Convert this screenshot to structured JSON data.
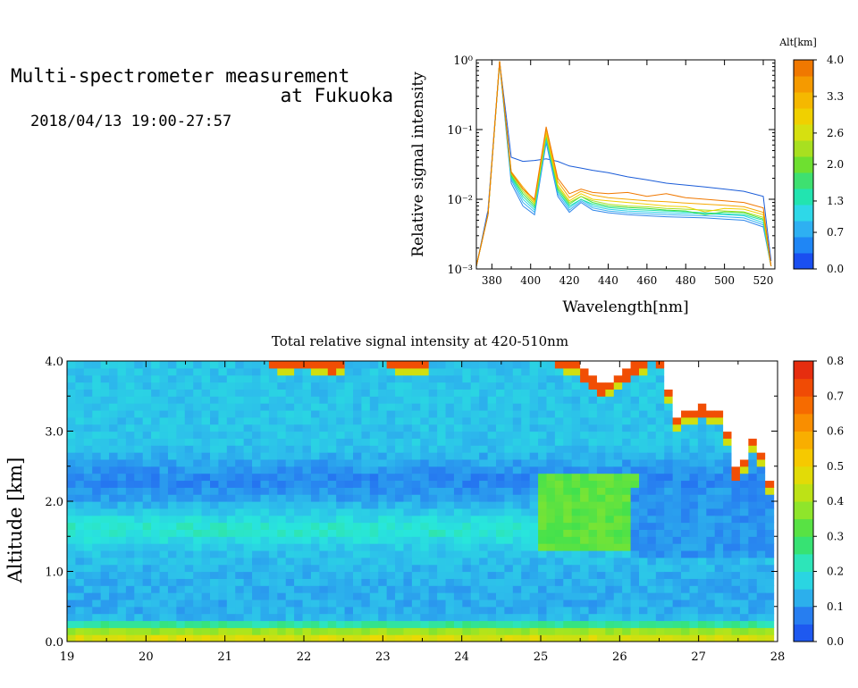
{
  "header": {
    "title_line1": "Multi-spectrometer measurement",
    "title_line2": "at Fukuoka",
    "date_range": "2018/04/13 19:00-27:57"
  },
  "chart_data": [
    {
      "type": "line",
      "xlabel": "Wavelength[nm]",
      "ylabel": "Relative signal intensity",
      "xlim": [
        372,
        526
      ],
      "ylim": [
        0.001,
        1
      ],
      "yscale": "log",
      "x_ticks": [
        "380",
        "400",
        "420",
        "440",
        "460",
        "480",
        "500",
        "520"
      ],
      "y_ticks": [
        "10⁻³",
        "10⁻²",
        "10⁻¹",
        "10⁰"
      ],
      "legend_title": "Alt[km]",
      "legend_ticks": [
        "0.0",
        "0.7",
        "1.3",
        "2.0",
        "2.6",
        "3.3",
        "4.0"
      ],
      "x": [
        372,
        378,
        384,
        390,
        396,
        402,
        408,
        414,
        420,
        426,
        432,
        440,
        450,
        460,
        470,
        480,
        490,
        500,
        510,
        520,
        524
      ],
      "series": [
        {
          "color": "#1a5cd8",
          "values": [
            0.0011,
            0.007,
            0.95,
            0.04,
            0.035,
            0.036,
            0.038,
            0.035,
            0.03,
            0.028,
            0.026,
            0.024,
            0.021,
            0.019,
            0.017,
            0.016,
            0.015,
            0.014,
            0.013,
            0.011,
            0.0013
          ]
        },
        {
          "color": "#2f86ea",
          "values": [
            0.0011,
            0.006,
            0.9,
            0.017,
            0.008,
            0.006,
            0.065,
            0.011,
            0.0065,
            0.009,
            0.007,
            0.0064,
            0.006,
            0.0058,
            0.0056,
            0.0055,
            0.0054,
            0.0052,
            0.005,
            0.004,
            0.0011
          ]
        },
        {
          "color": "#38b0f2",
          "values": [
            0.0011,
            0.006,
            0.92,
            0.019,
            0.009,
            0.0065,
            0.07,
            0.012,
            0.007,
            0.0095,
            0.0075,
            0.0068,
            0.0064,
            0.0062,
            0.006,
            0.0059,
            0.0058,
            0.0056,
            0.0054,
            0.0043,
            0.0011
          ]
        },
        {
          "color": "#2ed4e6",
          "values": [
            0.0011,
            0.006,
            0.93,
            0.02,
            0.01,
            0.007,
            0.075,
            0.013,
            0.0075,
            0.01,
            0.008,
            0.0072,
            0.0068,
            0.0066,
            0.0064,
            0.0063,
            0.0062,
            0.006,
            0.0058,
            0.0046,
            0.0011
          ]
        },
        {
          "color": "#22e0a8",
          "values": [
            0.0011,
            0.006,
            0.94,
            0.021,
            0.011,
            0.0075,
            0.078,
            0.013,
            0.008,
            0.01,
            0.0085,
            0.0076,
            0.0072,
            0.007,
            0.0068,
            0.0066,
            0.0064,
            0.0062,
            0.006,
            0.005,
            0.0011
          ]
        },
        {
          "color": "#40e040",
          "values": [
            0.0011,
            0.006,
            0.94,
            0.022,
            0.012,
            0.008,
            0.082,
            0.014,
            0.0085,
            0.011,
            0.009,
            0.008,
            0.0076,
            0.0074,
            0.007,
            0.0068,
            0.006,
            0.0066,
            0.0064,
            0.0052,
            0.0011
          ]
        },
        {
          "color": "#a8e020",
          "values": [
            0.0011,
            0.006,
            0.95,
            0.023,
            0.013,
            0.0085,
            0.085,
            0.015,
            0.009,
            0.011,
            0.0095,
            0.0085,
            0.008,
            0.0078,
            0.0074,
            0.0072,
            0.007,
            0.0068,
            0.0066,
            0.0055,
            0.0011
          ]
        },
        {
          "color": "#f0d000",
          "values": [
            0.0011,
            0.006,
            0.95,
            0.024,
            0.014,
            0.009,
            0.09,
            0.016,
            0.0095,
            0.012,
            0.01,
            0.0095,
            0.009,
            0.0085,
            0.008,
            0.0078,
            0.0066,
            0.0074,
            0.0072,
            0.006,
            0.0011
          ]
        },
        {
          "color": "#f5a800",
          "values": [
            0.0011,
            0.006,
            0.96,
            0.025,
            0.015,
            0.0095,
            0.1,
            0.018,
            0.0105,
            0.013,
            0.0115,
            0.0105,
            0.01,
            0.0095,
            0.0092,
            0.0088,
            0.0085,
            0.0082,
            0.0078,
            0.0065,
            0.0011
          ]
        },
        {
          "color": "#f07800",
          "values": [
            0.0011,
            0.006,
            0.96,
            0.024,
            0.014,
            0.01,
            0.11,
            0.02,
            0.012,
            0.014,
            0.0125,
            0.012,
            0.0125,
            0.011,
            0.012,
            0.0105,
            0.01,
            0.0095,
            0.009,
            0.0075,
            0.0011
          ]
        }
      ]
    },
    {
      "type": "heatmap",
      "title": "Total relative signal intensity at 420-510nm",
      "ylabel": "Altitude [km]",
      "xlim": [
        19,
        28
      ],
      "ylim": [
        0,
        4
      ],
      "x_ticks": [
        "19",
        "20",
        "21",
        "22",
        "23",
        "24",
        "25",
        "26",
        "27",
        "28"
      ],
      "y_ticks": [
        "0.0",
        "1.0",
        "2.0",
        "3.0",
        "4.0"
      ],
      "colorbar_range": [
        0,
        0.8
      ],
      "colorbar_ticks": [
        "0.0",
        "0.1",
        "0.2",
        "0.3",
        "0.4",
        "0.5",
        "0.6",
        "0.7",
        "0.8"
      ],
      "data_end_hour": 27.95,
      "altitude_profile_km": [
        0.0,
        0.2,
        0.3,
        0.5,
        1.0,
        1.3,
        1.6,
        2.0,
        2.3,
        2.8,
        3.3,
        4.0
      ],
      "altitude_profile_values": [
        0.5,
        0.35,
        0.14,
        0.12,
        0.13,
        0.15,
        0.22,
        0.12,
        0.08,
        0.15,
        0.15,
        0.15
      ],
      "high_signal_regions": [
        {
          "from_hour": 25.0,
          "to_hour": 26.2,
          "alt_from_km": 1.3,
          "alt_to_km": 2.4,
          "value": 0.33
        },
        {
          "from_hour": 26.1,
          "to_hour": 27.9,
          "alt_from_km": 1.2,
          "alt_to_km": 2.2,
          "value": 0.1
        }
      ],
      "upper_cloud_boundary": {
        "hours": [
          19.0,
          21.5,
          21.7,
          22.0,
          22.4,
          22.6,
          22.8,
          23.0,
          23.3,
          23.6,
          24.0,
          25.0,
          25.4,
          25.8,
          26.2,
          26.5,
          26.7,
          27.0,
          27.3,
          27.5,
          27.7,
          27.9
        ],
        "top_signal_km": [
          4.0,
          4.0,
          3.88,
          3.95,
          3.82,
          4.0,
          3.95,
          4.0,
          3.85,
          3.95,
          4.0,
          4.0,
          3.9,
          3.5,
          3.85,
          4.0,
          3.1,
          3.25,
          3.2,
          2.2,
          2.85,
          2.2
        ]
      }
    }
  ]
}
